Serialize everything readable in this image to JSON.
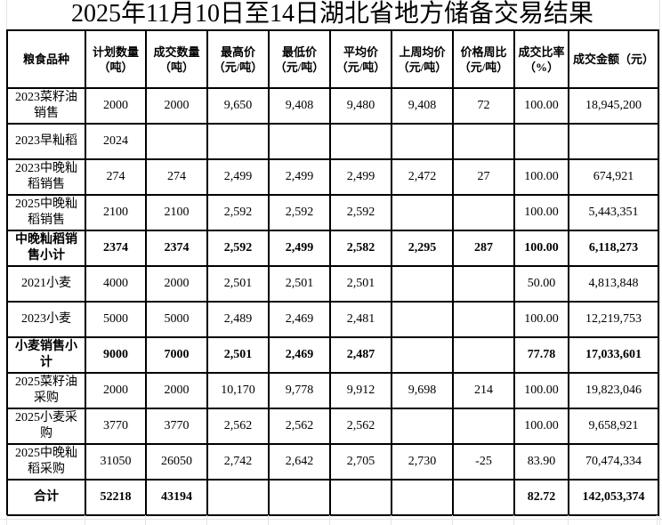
{
  "title": "2025年11月10日至14日湖北省地方储备交易结果",
  "colors": {
    "background": "#ffffff",
    "text": "#000000",
    "table_border": "#000000",
    "spreadsheet_gridline": "#e4e4e4"
  },
  "table": {
    "headers": [
      "粮食品种",
      "计划数量（吨）",
      "成交数量（吨）",
      "最高价（元/吨）",
      "最低价（元/吨）",
      "平均价（元/吨）",
      "上周均价（元/吨）",
      "价格周比（元/吨）",
      "成交比率（%）",
      "成交金额（元）"
    ],
    "rows": [
      {
        "bold": false,
        "cells": [
          "2023菜籽油销售",
          "2000",
          "2000",
          "9,650",
          "9,408",
          "9,480",
          "9,408",
          "72",
          "100.00",
          "18,945,200"
        ]
      },
      {
        "bold": false,
        "cells": [
          "2023早籼稻",
          "2024",
          "",
          "",
          "",
          "",
          "",
          "",
          "",
          ""
        ]
      },
      {
        "bold": false,
        "cells": [
          "2023中晚籼稻销售",
          "274",
          "274",
          "2,499",
          "2,499",
          "2,499",
          "2,472",
          "27",
          "100.00",
          "674,921"
        ]
      },
      {
        "bold": false,
        "cells": [
          "2025中晚籼稻销售",
          "2100",
          "2100",
          "2,592",
          "2,592",
          "2,592",
          "",
          "",
          "100.00",
          "5,443,351"
        ]
      },
      {
        "bold": true,
        "cells": [
          "中晚籼稻销售小计",
          "2374",
          "2374",
          "2,592",
          "2,499",
          "2,582",
          "2,295",
          "287",
          "100.00",
          "6,118,273"
        ]
      },
      {
        "bold": false,
        "cells": [
          "2021小麦",
          "4000",
          "2000",
          "2,501",
          "2,501",
          "2,501",
          "",
          "",
          "50.00",
          "4,813,848"
        ]
      },
      {
        "bold": false,
        "cells": [
          "2023小麦",
          "5000",
          "5000",
          "2,489",
          "2,469",
          "2,481",
          "",
          "",
          "100.00",
          "12,219,753"
        ]
      },
      {
        "bold": true,
        "cells": [
          "小麦销售小计",
          "9000",
          "7000",
          "2,501",
          "2,469",
          "2,487",
          "",
          "",
          "77.78",
          "17,033,601"
        ]
      },
      {
        "bold": false,
        "cells": [
          "2025菜籽油采购",
          "2000",
          "2000",
          "10,170",
          "9,778",
          "9,912",
          "9,698",
          "214",
          "100.00",
          "19,823,046"
        ]
      },
      {
        "bold": false,
        "cells": [
          "2025小麦采购",
          "3770",
          "3770",
          "2,562",
          "2,562",
          "2,562",
          "",
          "",
          "100.00",
          "9,658,921"
        ]
      },
      {
        "bold": false,
        "cells": [
          "2025中晚籼稻采购",
          "31050",
          "26050",
          "2,742",
          "2,642",
          "2,705",
          "2,730",
          "-25",
          "83.90",
          "70,474,334"
        ]
      },
      {
        "bold": true,
        "cells": [
          "合计",
          "52218",
          "43194",
          "",
          "",
          "",
          "",
          "",
          "82.72",
          "142,053,374"
        ]
      }
    ]
  }
}
